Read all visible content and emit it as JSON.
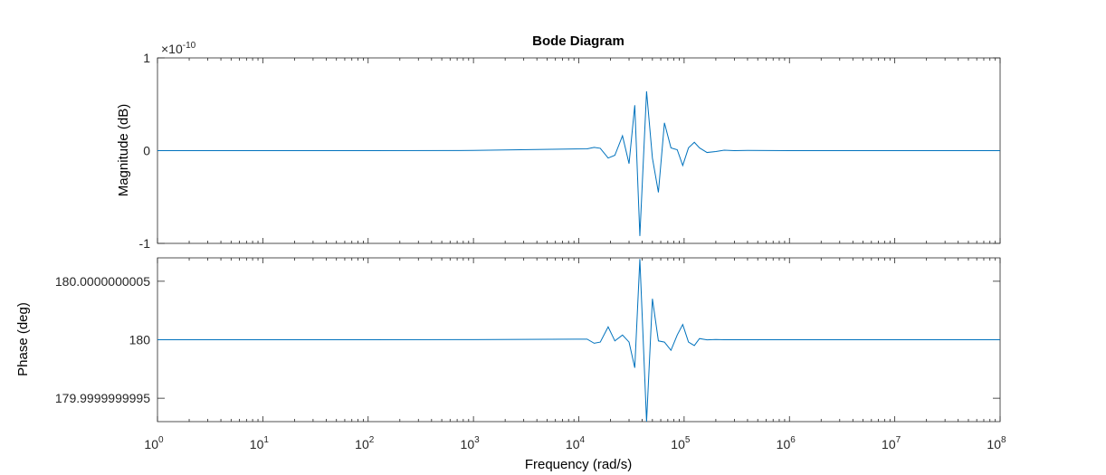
{
  "chart_data": {
    "type": "line",
    "title": "Bode Diagram",
    "xlabel": "Frequency  (rad/s)",
    "xscale": "log",
    "xlim": [
      1,
      100000000
    ],
    "x_ticks": [
      {
        "base": "10",
        "exp": "0"
      },
      {
        "base": "10",
        "exp": "1"
      },
      {
        "base": "10",
        "exp": "2"
      },
      {
        "base": "10",
        "exp": "3"
      },
      {
        "base": "10",
        "exp": "4"
      },
      {
        "base": "10",
        "exp": "5"
      },
      {
        "base": "10",
        "exp": "6"
      },
      {
        "base": "10",
        "exp": "7"
      },
      {
        "base": "10",
        "exp": "8"
      }
    ],
    "line_color": "#0072BD",
    "grid": false,
    "magnitude": {
      "ylabel": "Magnitude (dB)",
      "multiplier": {
        "base": "×10",
        "exp": "-10"
      },
      "ylim": [
        -1,
        1
      ],
      "y_ticks": [
        "-1",
        "0",
        "1"
      ],
      "x": [
        1,
        10,
        100,
        1000,
        12000,
        14000,
        16000,
        19000,
        22000,
        26000,
        30000,
        34000,
        38000,
        44000,
        50000,
        57000,
        65000,
        75000,
        86000,
        97000,
        110000,
        125000,
        140000,
        165000,
        200000,
        240000,
        300000,
        400000,
        1000000,
        10000000,
        100000000
      ],
      "y": [
        0,
        0,
        0,
        0.002,
        0.02,
        0.035,
        0.025,
        -0.08,
        -0.05,
        0.16,
        -0.14,
        0.49,
        -0.92,
        0.64,
        -0.08,
        -0.45,
        0.3,
        0.03,
        0.01,
        -0.16,
        0.03,
        0.09,
        0.03,
        -0.02,
        -0.01,
        0.005,
        0,
        0.002,
        0,
        0,
        0
      ]
    },
    "phase": {
      "ylabel": "Phase (deg)",
      "ylim": [
        179.9999999993,
        180.0000000007
      ],
      "y_ticks": [
        {
          "label": "179.9999999995",
          "value": 179.9999999995
        },
        {
          "label": "180",
          "value": 180
        },
        {
          "label": "180.0000000005",
          "value": 180.0000000005
        }
      ],
      "x": [
        1,
        10,
        100,
        1000,
        12000,
        14000,
        16000,
        19000,
        22000,
        26000,
        30000,
        34000,
        38000,
        44000,
        50000,
        57000,
        65000,
        75000,
        86000,
        97000,
        110000,
        125000,
        140000,
        165000,
        200000,
        240000,
        300000,
        400000,
        1000000,
        10000000,
        100000000
      ],
      "y_offset_1e-10": [
        0,
        0,
        0,
        0.01,
        0.05,
        -0.3,
        -0.2,
        1.1,
        -0.1,
        0.4,
        -0.2,
        -2.4,
        6.9,
        -7.0,
        3.5,
        -0.1,
        -0.2,
        -0.9,
        0.4,
        1.3,
        -0.2,
        -0.5,
        0.1,
        -0.01,
        0.02,
        0,
        0,
        0,
        0,
        0,
        0
      ]
    }
  }
}
